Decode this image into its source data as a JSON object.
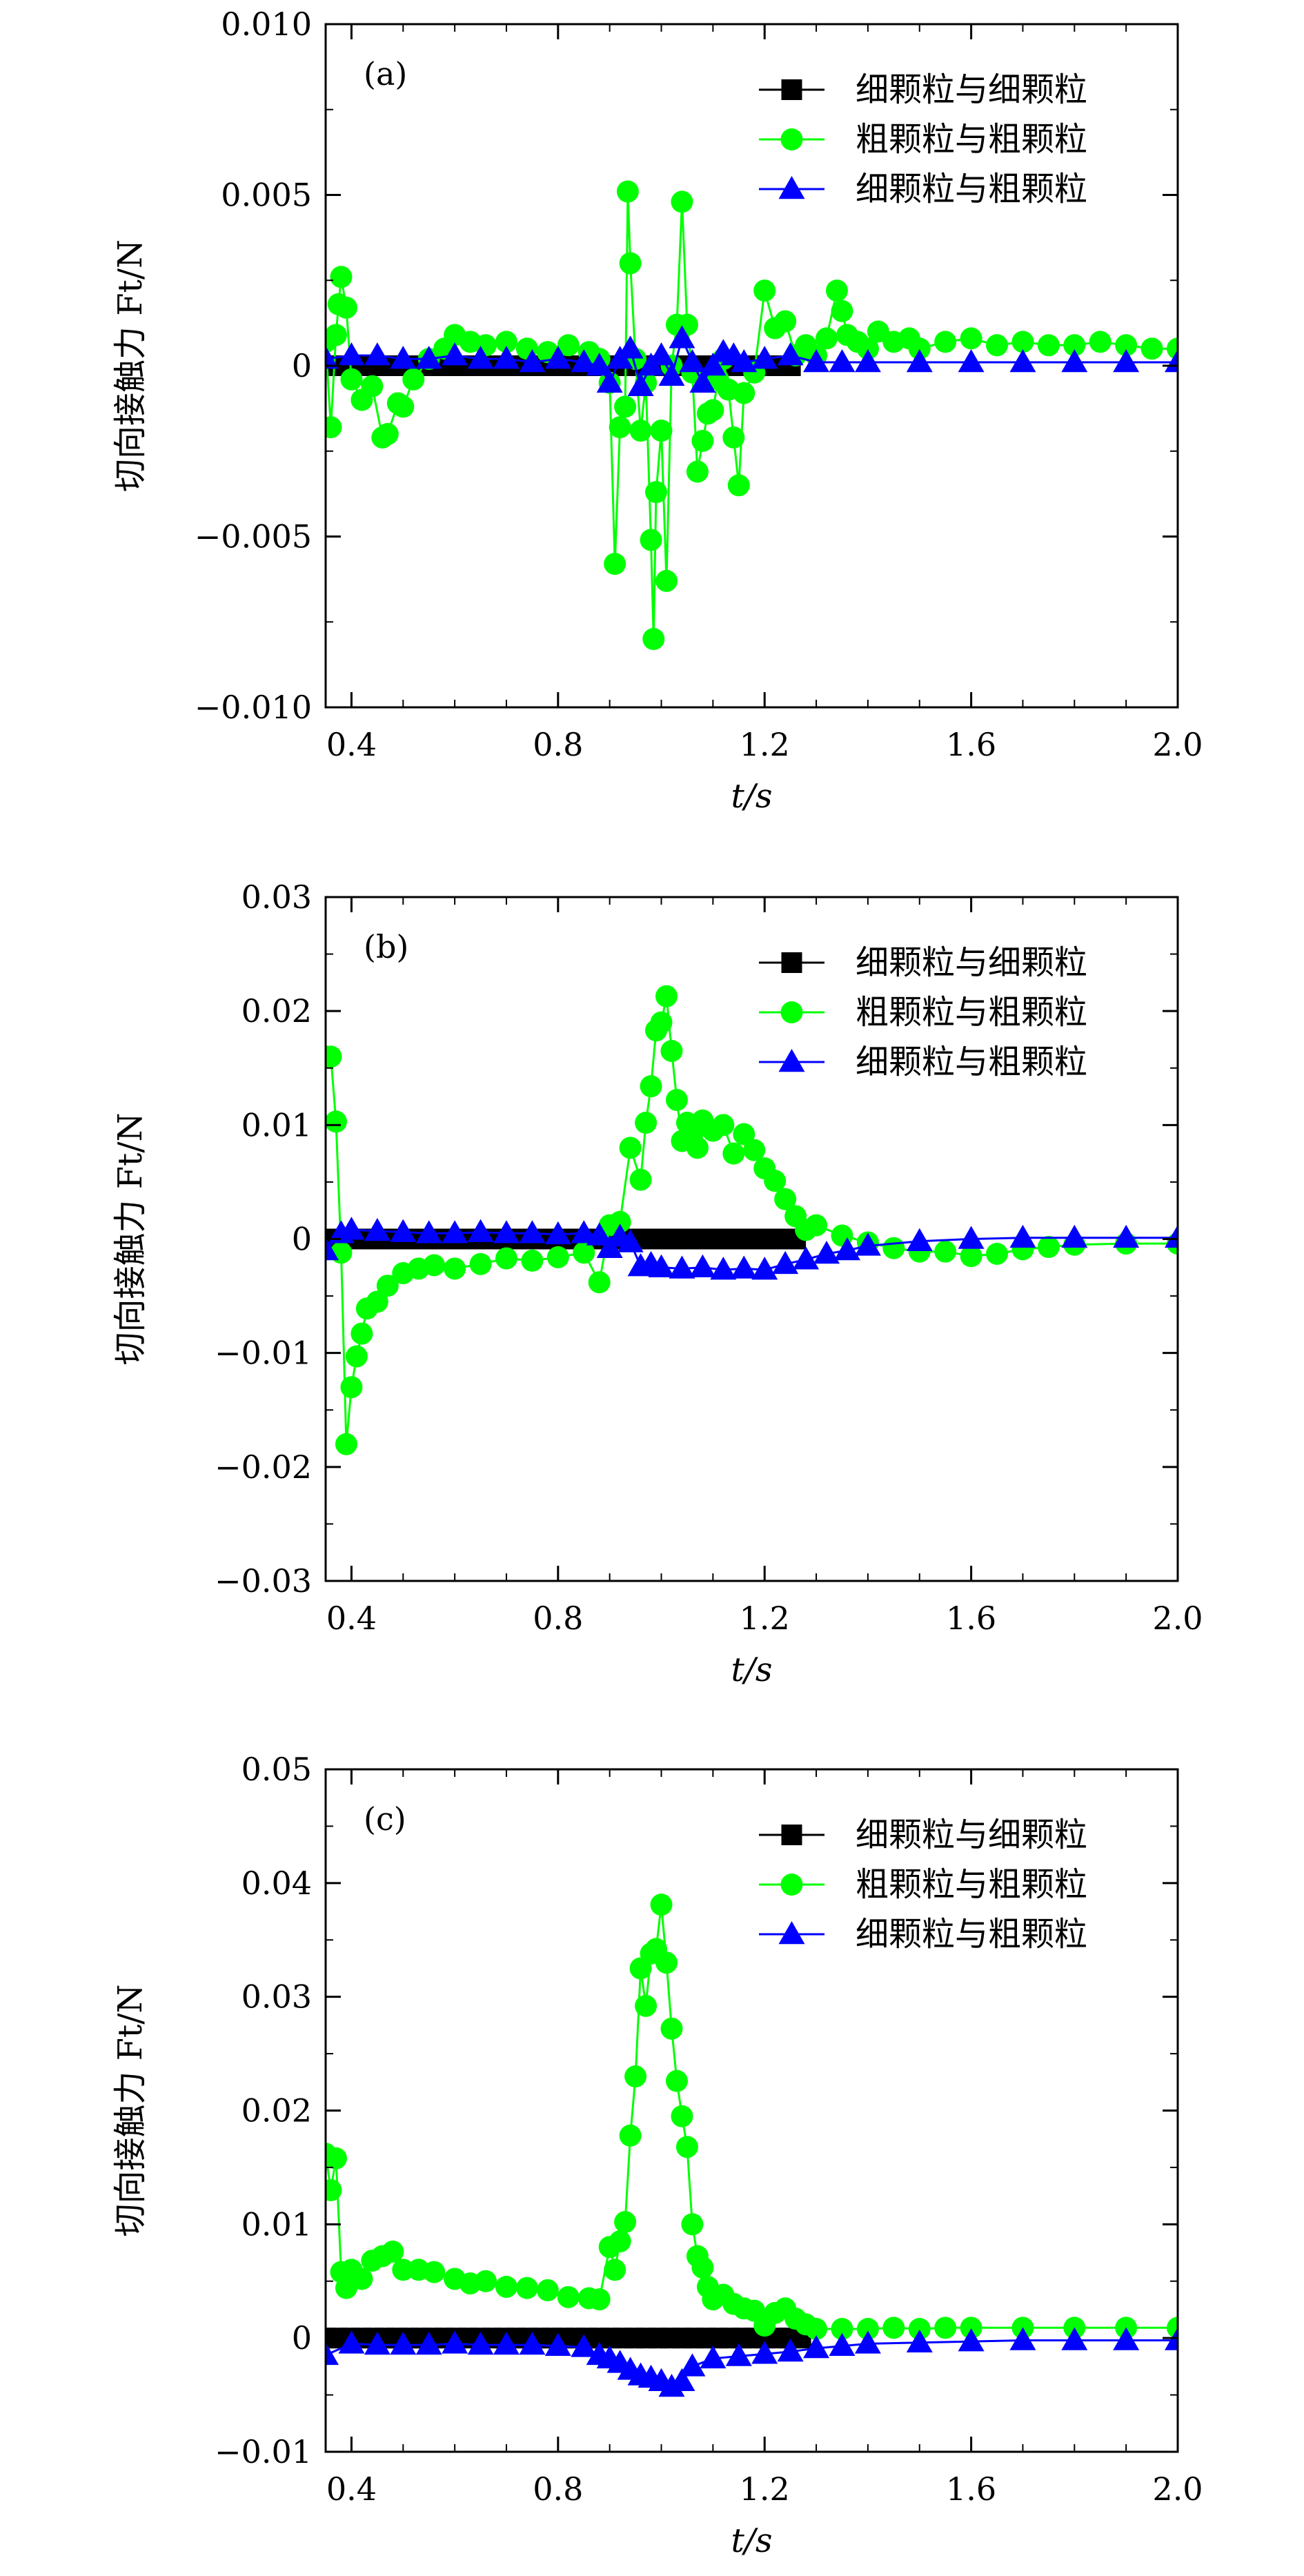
{
  "chart_data": [
    {
      "type": "line",
      "panel_label": "(a)",
      "xlabel": "t/s",
      "ylabel": "切向接触力 Ft/N",
      "xlim": [
        0.35,
        2.0
      ],
      "ylim": [
        -0.01,
        0.01
      ],
      "xticks": [
        0.4,
        0.8,
        1.2,
        1.6,
        2.0
      ],
      "xtick_labels": [
        "0.4",
        "0.8",
        "1.2",
        "1.6",
        "2.0"
      ],
      "yticks": [
        -0.01,
        -0.005,
        0,
        0.005,
        0.01
      ],
      "ytick_labels": [
        "−0.010",
        "−0.005",
        "0",
        "0.005",
        "0.010"
      ],
      "legend_position": "top-right",
      "series": [
        {
          "name": "细颗粒与细颗粒",
          "marker": "square",
          "color": "#000000",
          "x": [
            0.35,
            0.5,
            0.7,
            0.9,
            1.1,
            1.25
          ],
          "y": [
            0,
            0,
            0,
            0,
            0,
            0
          ]
        },
        {
          "name": "粗颗粒与粗颗粒",
          "marker": "circle",
          "color": "#00ff00",
          "x": [
            0.35,
            0.36,
            0.37,
            0.375,
            0.38,
            0.39,
            0.4,
            0.42,
            0.44,
            0.46,
            0.47,
            0.49,
            0.5,
            0.52,
            0.55,
            0.58,
            0.6,
            0.63,
            0.66,
            0.7,
            0.74,
            0.78,
            0.82,
            0.86,
            0.88,
            0.9,
            0.91,
            0.92,
            0.93,
            0.935,
            0.94,
            0.95,
            0.96,
            0.97,
            0.98,
            0.985,
            0.99,
            1.0,
            1.01,
            1.02,
            1.03,
            1.04,
            1.05,
            1.06,
            1.07,
            1.08,
            1.09,
            1.1,
            1.11,
            1.12,
            1.13,
            1.14,
            1.15,
            1.16,
            1.18,
            1.2,
            1.22,
            1.24,
            1.26,
            1.28,
            1.3,
            1.32,
            1.34,
            1.35,
            1.36,
            1.38,
            1.4,
            1.42,
            1.45,
            1.48,
            1.5,
            1.55,
            1.6,
            1.65,
            1.7,
            1.75,
            1.8,
            1.85,
            1.9,
            1.95,
            2.0
          ],
          "y": [
            0.0007,
            -0.0018,
            0.0009,
            0.0018,
            0.0026,
            0.0017,
            -0.0004,
            -0.001,
            -0.0006,
            -0.0021,
            -0.002,
            -0.0011,
            -0.0012,
            -0.0004,
            0.0002,
            0.0005,
            0.0009,
            0.0007,
            0.0006,
            0.0007,
            0.0005,
            0.0004,
            0.0006,
            0.0004,
            0.0002,
            -0.0005,
            -0.0058,
            -0.0018,
            -0.0012,
            0.0051,
            0.003,
            0.0002,
            -0.0019,
            -0.0005,
            -0.0051,
            -0.008,
            -0.0037,
            -0.0019,
            -0.0063,
            0.0,
            0.0012,
            0.0048,
            0.0012,
            -0.0002,
            -0.0031,
            -0.0022,
            -0.0014,
            -0.0013,
            -0.0004,
            0.0002,
            -0.0007,
            -0.0021,
            -0.0035,
            -0.0008,
            -0.0002,
            0.0022,
            0.0011,
            0.0013,
            0.0003,
            0.0006,
            0.0003,
            0.0008,
            0.0022,
            0.0016,
            0.0009,
            0.0007,
            0.0005,
            0.001,
            0.0007,
            0.0008,
            0.0005,
            0.0007,
            0.0008,
            0.0006,
            0.0007,
            0.0006,
            0.0006,
            0.0007,
            0.0006,
            0.0005,
            0.0005
          ]
        },
        {
          "name": "细颗粒与粗颗粒",
          "marker": "triangle",
          "color": "#0000ff",
          "x": [
            0.35,
            0.4,
            0.45,
            0.5,
            0.55,
            0.6,
            0.65,
            0.7,
            0.75,
            0.8,
            0.85,
            0.88,
            0.9,
            0.92,
            0.94,
            0.96,
            0.98,
            1.0,
            1.02,
            1.04,
            1.06,
            1.08,
            1.1,
            1.12,
            1.14,
            1.16,
            1.2,
            1.25,
            1.3,
            1.35,
            1.4,
            1.5,
            1.6,
            1.7,
            1.8,
            1.9,
            2.0
          ],
          "y": [
            0.0002,
            0.0003,
            0.0003,
            0.0002,
            0.0002,
            0.0003,
            0.0002,
            0.0002,
            0.0001,
            0.0002,
            0.0001,
            0.0,
            -0.0005,
            0.0002,
            0.0005,
            -0.0006,
            0.0,
            0.0003,
            -0.0003,
            0.0008,
            0.0001,
            -0.0005,
            0.0,
            0.0004,
            0.0003,
            0.0001,
            0.0002,
            0.0003,
            0.0001,
            0.0001,
            0.0001,
            0.0001,
            0.0001,
            0.0001,
            0.0001,
            0.0001,
            0.0001
          ]
        }
      ]
    },
    {
      "type": "line",
      "panel_label": "(b)",
      "xlabel": "t/s",
      "ylabel": "切向接触力 Ft/N",
      "xlim": [
        0.35,
        2.0
      ],
      "ylim": [
        -0.03,
        0.03
      ],
      "xticks": [
        0.4,
        0.8,
        1.2,
        1.6,
        2.0
      ],
      "xtick_labels": [
        "0.4",
        "0.8",
        "1.2",
        "1.6",
        "2.0"
      ],
      "yticks": [
        -0.03,
        -0.02,
        -0.01,
        0,
        0.01,
        0.02,
        0.03
      ],
      "ytick_labels": [
        "−0.03",
        "−0.02",
        "−0.01",
        "0",
        "0.01",
        "0.02",
        "0.03"
      ],
      "legend_position": "top-right",
      "series": [
        {
          "name": "细颗粒与细颗粒",
          "marker": "square",
          "color": "#000000",
          "x": [
            0.35,
            0.5,
            0.7,
            0.9,
            1.1,
            1.26
          ],
          "y": [
            0,
            0,
            0,
            0,
            0,
            0
          ]
        },
        {
          "name": "粗颗粒与粗颗粒",
          "marker": "circle",
          "color": "#00ff00",
          "x": [
            0.35,
            0.36,
            0.37,
            0.38,
            0.39,
            0.4,
            0.41,
            0.42,
            0.43,
            0.45,
            0.47,
            0.5,
            0.53,
            0.56,
            0.6,
            0.65,
            0.7,
            0.75,
            0.8,
            0.85,
            0.88,
            0.9,
            0.92,
            0.94,
            0.96,
            0.97,
            0.98,
            0.99,
            1.0,
            1.01,
            1.02,
            1.03,
            1.04,
            1.05,
            1.06,
            1.07,
            1.08,
            1.1,
            1.12,
            1.14,
            1.16,
            1.18,
            1.2,
            1.22,
            1.24,
            1.26,
            1.28,
            1.3,
            1.35,
            1.4,
            1.45,
            1.5,
            1.55,
            1.6,
            1.65,
            1.7,
            1.75,
            1.8,
            1.9,
            2.0
          ],
          "y": [
            0.016,
            0.016,
            0.0103,
            -0.0012,
            -0.018,
            -0.013,
            -0.0103,
            -0.0083,
            -0.0061,
            -0.0055,
            -0.0041,
            -0.003,
            -0.0026,
            -0.0023,
            -0.0026,
            -0.0022,
            -0.0017,
            -0.0019,
            -0.0016,
            -0.0012,
            -0.0038,
            0.0012,
            0.0015,
            0.008,
            0.0052,
            0.0102,
            0.0134,
            0.0183,
            0.019,
            0.0213,
            0.0165,
            0.0122,
            0.0086,
            0.0102,
            0.0092,
            0.008,
            0.0104,
            0.0095,
            0.01,
            0.0075,
            0.0092,
            0.0078,
            0.0062,
            0.0051,
            0.0035,
            0.002,
            0.0008,
            0.0012,
            0.0003,
            -0.0003,
            -0.0008,
            -0.0011,
            -0.0011,
            -0.0015,
            -0.0013,
            -0.0009,
            -0.0007,
            -0.0005,
            -0.0004,
            -0.0004
          ]
        },
        {
          "name": "细颗粒与粗颗粒",
          "marker": "triangle",
          "color": "#0000ff",
          "x": [
            0.35,
            0.38,
            0.4,
            0.45,
            0.5,
            0.55,
            0.6,
            0.65,
            0.7,
            0.75,
            0.8,
            0.85,
            0.88,
            0.9,
            0.92,
            0.94,
            0.96,
            0.98,
            1.0,
            1.04,
            1.08,
            1.12,
            1.16,
            1.2,
            1.24,
            1.28,
            1.32,
            1.36,
            1.4,
            1.5,
            1.6,
            1.7,
            1.8,
            1.9,
            2.0
          ],
          "y": [
            -0.001,
            0.0005,
            0.0008,
            0.0007,
            0.0006,
            0.0005,
            0.0005,
            0.0006,
            0.0005,
            0.0005,
            0.0004,
            0.0005,
            0.0003,
            -0.0008,
            0.0002,
            -0.0003,
            -0.0024,
            -0.0022,
            -0.0025,
            -0.0026,
            -0.0025,
            -0.0027,
            -0.0026,
            -0.0027,
            -0.0022,
            -0.0018,
            -0.0013,
            -0.001,
            -0.0006,
            -0.0002,
            0.0,
            0.0001,
            0.0001,
            0.0001,
            0.0001
          ]
        }
      ]
    },
    {
      "type": "line",
      "panel_label": "(c)",
      "xlabel": "t/s",
      "ylabel": "切向接触力 Ft/N",
      "xlim": [
        0.35,
        2.0
      ],
      "ylim": [
        -0.01,
        0.05
      ],
      "xticks": [
        0.4,
        0.8,
        1.2,
        1.6,
        2.0
      ],
      "xtick_labels": [
        "0.4",
        "0.8",
        "1.2",
        "1.6",
        "2.0"
      ],
      "yticks": [
        -0.01,
        0,
        0.01,
        0.02,
        0.03,
        0.04,
        0.05
      ],
      "ytick_labels": [
        "−0.01",
        "0",
        "0.01",
        "0.02",
        "0.03",
        "0.04",
        "0.05"
      ],
      "legend_position": "top-right",
      "series": [
        {
          "name": "细颗粒与细颗粒",
          "marker": "square",
          "color": "#000000",
          "x": [
            0.35,
            0.5,
            0.7,
            0.9,
            1.1,
            1.27
          ],
          "y": [
            0,
            0,
            0,
            0,
            0,
            0
          ]
        },
        {
          "name": "粗颗粒与粗颗粒",
          "marker": "circle",
          "color": "#00ff00",
          "x": [
            0.35,
            0.36,
            0.37,
            0.38,
            0.39,
            0.4,
            0.42,
            0.44,
            0.46,
            0.48,
            0.5,
            0.53,
            0.56,
            0.6,
            0.63,
            0.66,
            0.7,
            0.74,
            0.78,
            0.82,
            0.86,
            0.88,
            0.9,
            0.91,
            0.92,
            0.93,
            0.94,
            0.95,
            0.96,
            0.97,
            0.98,
            0.99,
            1.0,
            1.01,
            1.02,
            1.03,
            1.04,
            1.05,
            1.06,
            1.07,
            1.08,
            1.09,
            1.1,
            1.12,
            1.14,
            1.16,
            1.18,
            1.2,
            1.22,
            1.24,
            1.26,
            1.28,
            1.3,
            1.35,
            1.4,
            1.45,
            1.5,
            1.55,
            1.6,
            1.7,
            1.8,
            1.9,
            2.0
          ],
          "y": [
            0.0162,
            0.013,
            0.0158,
            0.0058,
            0.0044,
            0.006,
            0.0052,
            0.0068,
            0.0072,
            0.0076,
            0.006,
            0.006,
            0.0058,
            0.0052,
            0.0048,
            0.005,
            0.0045,
            0.0044,
            0.0042,
            0.0036,
            0.0035,
            0.0034,
            0.008,
            0.006,
            0.0085,
            0.0102,
            0.0178,
            0.023,
            0.0325,
            0.0292,
            0.0338,
            0.0342,
            0.0381,
            0.033,
            0.0272,
            0.0226,
            0.0195,
            0.0168,
            0.01,
            0.0072,
            0.0062,
            0.0045,
            0.0034,
            0.0038,
            0.003,
            0.0026,
            0.0024,
            0.0011,
            0.0022,
            0.0026,
            0.0017,
            0.0012,
            0.0008,
            0.0008,
            0.0008,
            0.0009,
            0.0008,
            0.0009,
            0.0009,
            0.0009,
            0.0009,
            0.0009,
            0.0009
          ]
        },
        {
          "name": "细颗粒与粗颗粒",
          "marker": "triangle",
          "color": "#0000ff",
          "x": [
            0.35,
            0.4,
            0.45,
            0.5,
            0.55,
            0.6,
            0.65,
            0.7,
            0.75,
            0.8,
            0.85,
            0.88,
            0.9,
            0.92,
            0.94,
            0.96,
            0.98,
            1.0,
            1.02,
            1.04,
            1.06,
            1.1,
            1.15,
            1.2,
            1.25,
            1.3,
            1.35,
            1.4,
            1.5,
            1.6,
            1.7,
            1.8,
            1.9,
            2.0
          ],
          "y": [
            -0.0015,
            -0.0005,
            -0.0006,
            -0.0006,
            -0.0006,
            -0.0005,
            -0.0006,
            -0.0006,
            -0.0006,
            -0.0007,
            -0.0008,
            -0.0015,
            -0.0018,
            -0.0022,
            -0.0028,
            -0.0033,
            -0.0035,
            -0.0038,
            -0.0043,
            -0.0038,
            -0.0025,
            -0.0018,
            -0.0016,
            -0.0014,
            -0.0012,
            -0.0009,
            -0.0007,
            -0.0005,
            -0.0004,
            -0.0003,
            -0.0002,
            -0.0002,
            -0.0002,
            -0.0002
          ]
        }
      ]
    }
  ]
}
